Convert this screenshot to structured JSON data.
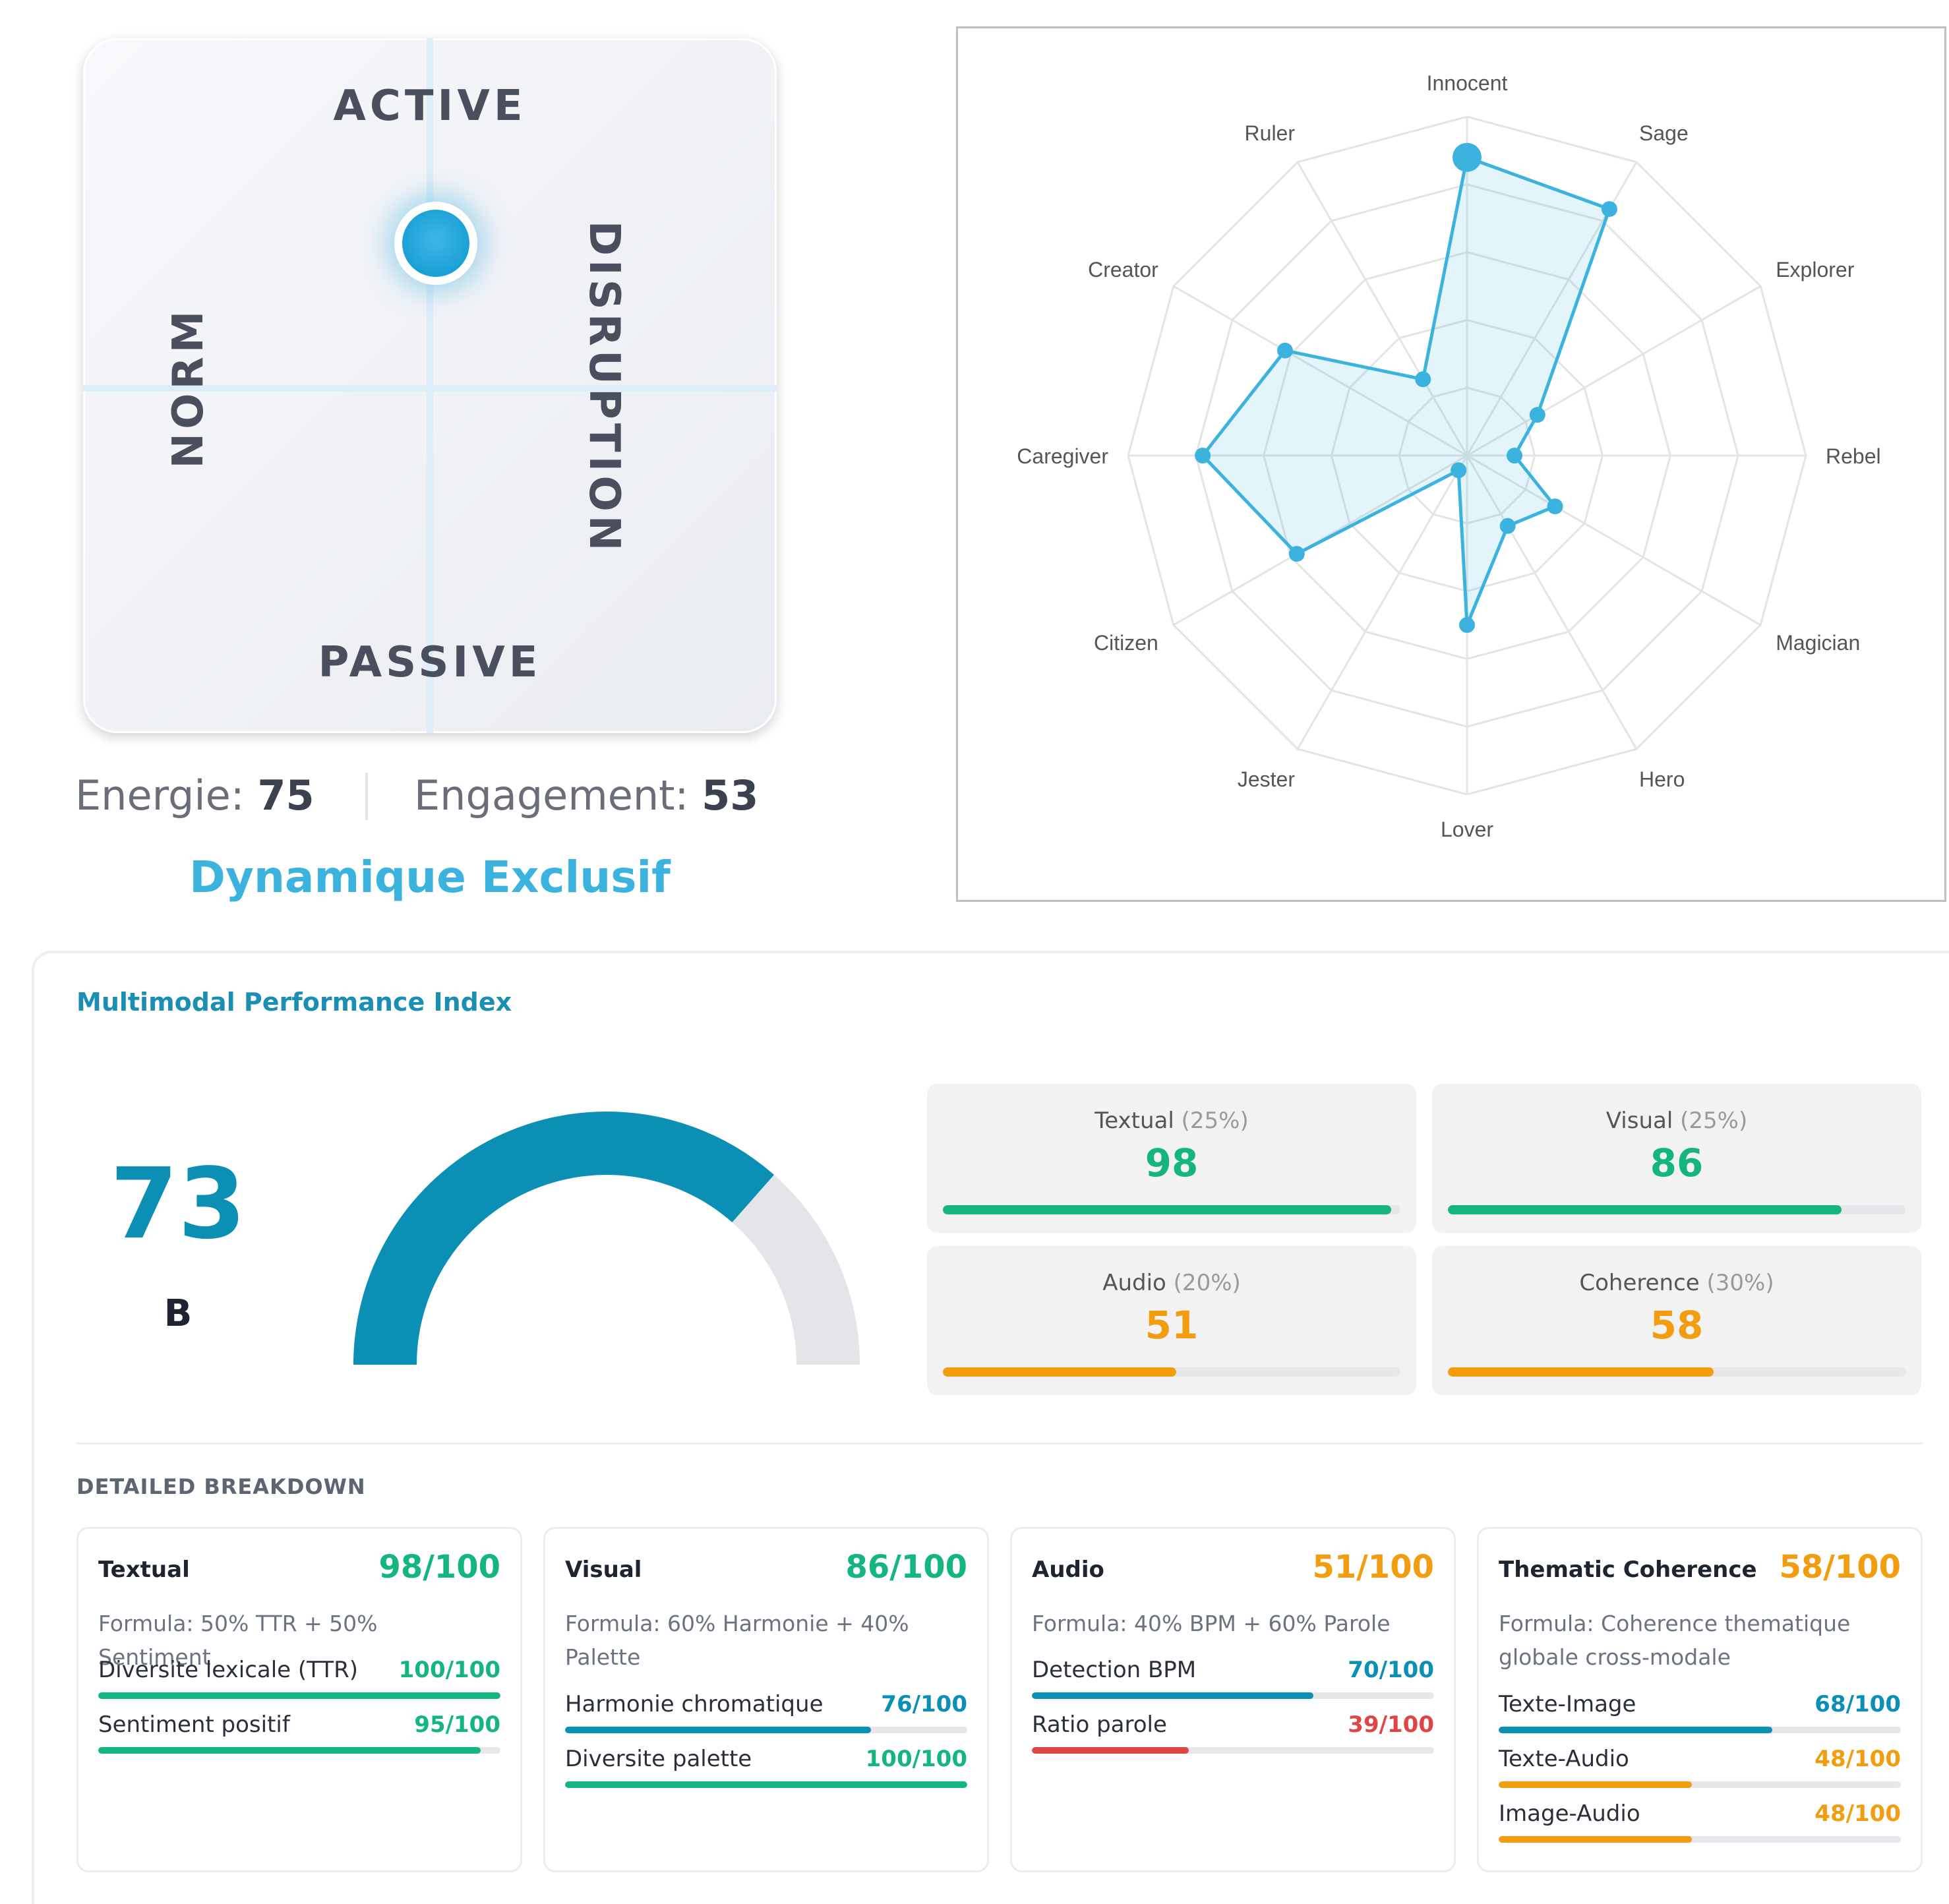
{
  "quadrant": {
    "top_label": "ACTIVE",
    "bottom_label": "PASSIVE",
    "left_label": "NORM",
    "right_label": "DISRUPTION",
    "energy_label": "Energie:",
    "energy_value": "75",
    "engagement_label": "Engagement:",
    "engagement_value": "53",
    "profile": "Dynamique Exclusif"
  },
  "chart_data": {
    "type": "radar",
    "max": 100,
    "rings": 5,
    "categories": [
      "Innocent",
      "Sage",
      "Explorer",
      "Rebel",
      "Magician",
      "Hero",
      "Lover",
      "Jester",
      "Citizen",
      "Caregiver",
      "Creator",
      "Ruler"
    ],
    "values": [
      88,
      84,
      24,
      14,
      30,
      24,
      50,
      5,
      58,
      78,
      62,
      26
    ],
    "color": "#3bb3de"
  },
  "mpi": {
    "title": "Multimodal Performance Index",
    "score": "73",
    "grade": "B",
    "gauge_value": 73,
    "gauge_color": "#0b8fb5",
    "gauge_track": "#e4e5e9",
    "metrics": [
      {
        "label": "Textual",
        "weight": "(25%)",
        "value": "98",
        "fill": 98,
        "color": "#14b57f"
      },
      {
        "label": "Visual",
        "weight": "(25%)",
        "value": "86",
        "fill": 86,
        "color": "#14b57f"
      },
      {
        "label": "Audio",
        "weight": "(20%)",
        "value": "51",
        "fill": 51,
        "color": "#f29d0f"
      },
      {
        "label": "Coherence",
        "weight": "(30%)",
        "value": "58",
        "fill": 58,
        "color": "#f29d0f"
      }
    ]
  },
  "breakdown": {
    "title": "DETAILED BREAKDOWN",
    "cards": [
      {
        "name": "Textual",
        "score": "98/100",
        "color": "#14b57f",
        "formula": "Formula: 50% TTR + 50% Sentiment",
        "items": [
          {
            "name": "Diversite lexicale (TTR)",
            "value": "100/100",
            "fill": 100,
            "color": "#14b57f"
          },
          {
            "name": "Sentiment positif",
            "value": "95/100",
            "fill": 95,
            "color": "#14b57f"
          }
        ]
      },
      {
        "name": "Visual",
        "score": "86/100",
        "color": "#14b57f",
        "formula": "Formula: 60% Harmonie + 40% Palette",
        "items": [
          {
            "name": "Harmonie chromatique",
            "value": "76/100",
            "fill": 76,
            "color": "#0b8fb5"
          },
          {
            "name": "Diversite palette",
            "value": "100/100",
            "fill": 100,
            "color": "#14b57f"
          }
        ]
      },
      {
        "name": "Audio",
        "score": "51/100",
        "color": "#f29d0f",
        "formula": "Formula: 40% BPM + 60% Parole",
        "items": [
          {
            "name": "Detection BPM",
            "value": "70/100",
            "fill": 70,
            "color": "#0b8fb5"
          },
          {
            "name": "Ratio parole",
            "value": "39/100",
            "fill": 39,
            "color": "#e04545"
          }
        ]
      },
      {
        "name": "Thematic Coherence",
        "score": "58/100",
        "color": "#f29d0f",
        "formula": "Formula: Coherence thematique globale cross-modale",
        "items": [
          {
            "name": "Texte-Image",
            "value": "68/100",
            "fill": 68,
            "color": "#0b8fb5"
          },
          {
            "name": "Texte-Audio",
            "value": "48/100",
            "fill": 48,
            "color": "#f29d0f"
          },
          {
            "name": "Image-Audio",
            "value": "48/100",
            "fill": 48,
            "color": "#f29d0f"
          }
        ]
      }
    ]
  }
}
